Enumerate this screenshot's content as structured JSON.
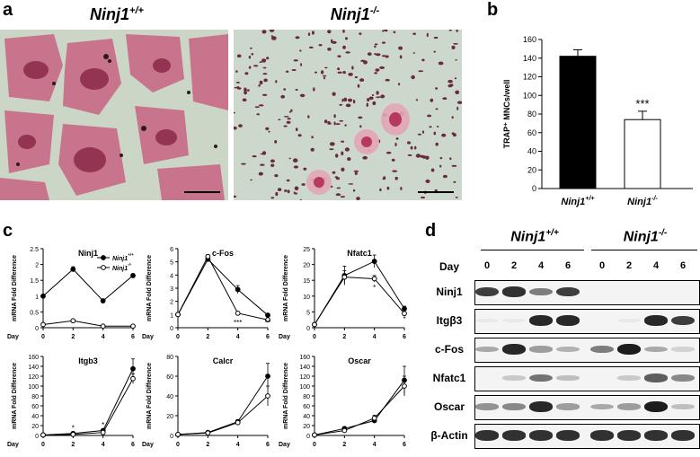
{
  "panels": {
    "a": {
      "letter": "a",
      "left_title": "Ninj1",
      "left_title_sup": "+/+",
      "right_title": "Ninj1",
      "right_title_sup": "-/-"
    },
    "b": {
      "letter": "b",
      "significance": "***"
    },
    "c": {
      "letter": "c"
    },
    "d": {
      "letter": "d",
      "group_left": "Ninj1",
      "group_left_sup": "+/+",
      "group_right": "Ninj1",
      "group_right_sup": "-/-",
      "day_label": "Day",
      "days": [
        "0",
        "2",
        "4",
        "6",
        "0",
        "2",
        "4",
        "6"
      ],
      "rows": [
        "Ninj1",
        "Itgβ3",
        "c-Fos",
        "Nfatc1",
        "Oscar",
        "β-Actin"
      ],
      "band_intensity": [
        [
          0.85,
          0.9,
          0.55,
          0.85,
          0,
          0,
          0,
          0
        ],
        [
          0.05,
          0.05,
          0.95,
          0.95,
          0,
          0.05,
          0.95,
          0.85
        ],
        [
          0.35,
          0.95,
          0.4,
          0.3,
          0.55,
          1.0,
          0.35,
          0.15
        ],
        [
          0,
          0.2,
          0.6,
          0.25,
          0,
          0.2,
          0.7,
          0.5
        ],
        [
          0.45,
          0.5,
          0.95,
          0.4,
          0.35,
          0.4,
          1.0,
          0.25
        ],
        [
          0.9,
          0.9,
          0.9,
          0.9,
          0.9,
          0.9,
          0.9,
          0.9
        ]
      ]
    }
  },
  "chart_data": [
    {
      "type": "bar",
      "panel": "b",
      "categories": [
        "Ninj1+/+",
        "Ninj1-/-"
      ],
      "category_labels": [
        {
          "base": "Ninj1",
          "sup": "+/+"
        },
        {
          "base": "Ninj1",
          "sup": "-/-"
        }
      ],
      "values": [
        142,
        74
      ],
      "errors": [
        7,
        9
      ],
      "fills": [
        "#000000",
        "#ffffff"
      ],
      "ylabel": "TRAP⁺ MNCs/well",
      "ylim": [
        0,
        160
      ],
      "yticks": [
        0,
        20,
        40,
        60,
        80,
        100,
        120,
        140,
        160
      ],
      "annotation": "***"
    },
    {
      "type": "line",
      "panel": "c",
      "title": "Ninj1",
      "x": [
        0,
        2,
        4,
        6
      ],
      "xlabel": "Day",
      "ylabel": "mRNA Fold Difference",
      "ylim": [
        0,
        2.5
      ],
      "yticks": [
        0,
        0.5,
        1,
        1.5,
        2,
        2.5
      ],
      "legend": [
        {
          "base": "Ninj1",
          "sup": "+/+"
        },
        {
          "base": "Ninj1",
          "sup": "-/-"
        }
      ],
      "series": [
        {
          "values": [
            1.0,
            1.85,
            0.85,
            1.65
          ],
          "err": [
            0.05,
            0.08,
            0.06,
            0.05
          ],
          "filled": true
        },
        {
          "values": [
            0.1,
            0.22,
            0.05,
            0.05
          ],
          "err": [
            0.02,
            0.02,
            0.02,
            0.02
          ],
          "filled": false
        }
      ],
      "marks": []
    },
    {
      "type": "line",
      "panel": "c",
      "title": "c-Fos",
      "x": [
        0,
        2,
        4,
        6
      ],
      "xlabel": "Day",
      "ylabel": "mRNA Fold Difference",
      "ylim": [
        0,
        6
      ],
      "yticks": [
        0,
        1,
        2,
        3,
        4,
        5,
        6
      ],
      "series": [
        {
          "values": [
            1.0,
            5.2,
            2.9,
            0.95
          ],
          "err": [
            0.05,
            0.15,
            0.3,
            0.1
          ],
          "filled": true
        },
        {
          "values": [
            1.0,
            5.4,
            1.1,
            0.6
          ],
          "err": [
            0.05,
            0.15,
            0.1,
            0.1
          ],
          "filled": false
        }
      ],
      "marks": [
        {
          "x": 4,
          "y": 0.2,
          "text": "***"
        },
        {
          "x": 6,
          "y": 0.2,
          "text": "**"
        }
      ]
    },
    {
      "type": "line",
      "panel": "c",
      "title": "Nfatc1",
      "x": [
        0,
        2,
        4,
        6
      ],
      "xlabel": "Day",
      "ylabel": "mRNA Fold Difference",
      "ylim": [
        0,
        25
      ],
      "yticks": [
        0,
        5,
        10,
        15,
        20,
        25
      ],
      "series": [
        {
          "values": [
            1.0,
            16.5,
            21.0,
            6.0
          ],
          "err": [
            0.2,
            3,
            2,
            0.8
          ],
          "filled": true
        },
        {
          "values": [
            1.0,
            16.0,
            15.5,
            4.5
          ],
          "err": [
            0.2,
            2,
            1,
            0.5
          ],
          "filled": false
        }
      ],
      "marks": [
        {
          "x": 4,
          "y": 12,
          "text": "*"
        },
        {
          "x": 6,
          "y": 2,
          "text": "*"
        }
      ]
    },
    {
      "type": "line",
      "panel": "c",
      "title": "Itgb3",
      "x": [
        0,
        2,
        4,
        6
      ],
      "xlabel": "Day",
      "ylabel": "mRNA Fold Difference",
      "ylim": [
        0,
        160
      ],
      "yticks": [
        0,
        20,
        40,
        60,
        80,
        100,
        120,
        140,
        160
      ],
      "series": [
        {
          "values": [
            1,
            4,
            10,
            135
          ],
          "err": [
            0.5,
            1,
            2,
            20
          ],
          "filled": true
        },
        {
          "values": [
            1,
            2,
            6,
            115
          ],
          "err": [
            0.5,
            1,
            1,
            10
          ],
          "filled": false
        }
      ],
      "marks": [
        {
          "x": 2,
          "y": 10,
          "text": "*"
        },
        {
          "x": 4,
          "y": 16,
          "text": "*"
        }
      ]
    },
    {
      "type": "line",
      "panel": "c",
      "title": "Calcr",
      "x": [
        0,
        2,
        4,
        6
      ],
      "xlabel": "Day",
      "ylabel": "mRNA Fold Difference",
      "ylim": [
        0,
        80
      ],
      "yticks": [
        0,
        20,
        40,
        60,
        80
      ],
      "series": [
        {
          "values": [
            1,
            3,
            14,
            60
          ],
          "err": [
            0.5,
            0.5,
            2,
            13
          ],
          "filled": true
        },
        {
          "values": [
            1,
            2.5,
            13,
            40
          ],
          "err": [
            0.5,
            0.5,
            2,
            10
          ],
          "filled": false
        }
      ],
      "marks": []
    },
    {
      "type": "line",
      "panel": "c",
      "title": "Oscar",
      "x": [
        0,
        2,
        4,
        6
      ],
      "xlabel": "Day",
      "ylabel": "mRNA Fold Difference",
      "ylim": [
        0,
        160
      ],
      "yticks": [
        0,
        20,
        40,
        60,
        80,
        100,
        120,
        140,
        160
      ],
      "series": [
        {
          "values": [
            1,
            14,
            30,
            112
          ],
          "err": [
            0.5,
            3,
            5,
            28
          ],
          "filled": true
        },
        {
          "values": [
            1,
            10,
            35,
            100
          ],
          "err": [
            0.5,
            3,
            6,
            20
          ],
          "filled": false
        }
      ],
      "marks": []
    }
  ]
}
